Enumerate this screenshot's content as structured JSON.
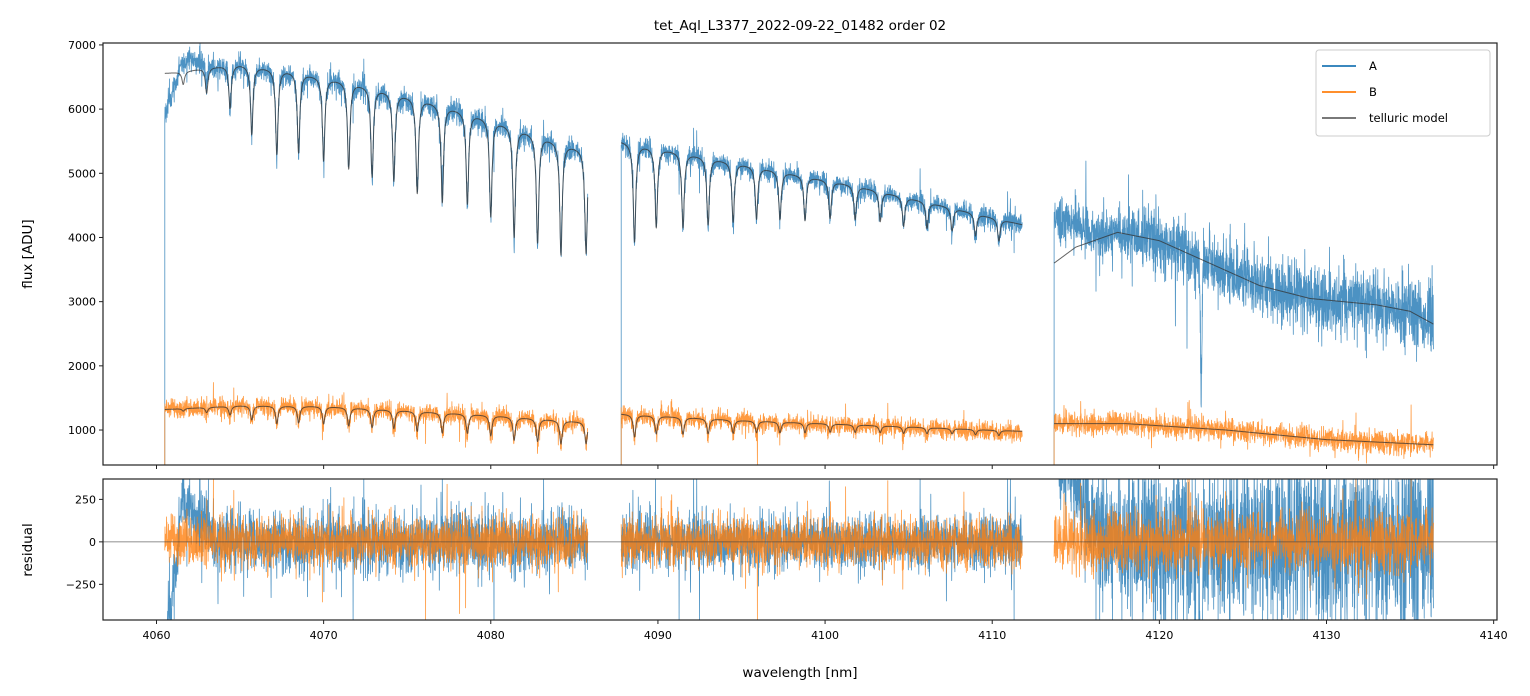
{
  "chart_data": {
    "type": "line",
    "title": "tet_Aql_L3377_2022-09-22_01482  order 02",
    "xlabel": "wavelength [nm]",
    "xlim": [
      4056.8,
      4140.2
    ],
    "xticks": [
      4060,
      4070,
      4080,
      4090,
      4100,
      4110,
      4120,
      4130,
      4140
    ],
    "legend": {
      "placement": "top-right",
      "entries": [
        "A",
        "B",
        "telluric model"
      ]
    },
    "colors": {
      "A": "#1f77b4",
      "B": "#ff7f0e",
      "model": "#333333"
    },
    "panels": [
      {
        "name": "flux",
        "ylabel": "flux [ADU]",
        "ylim": [
          455,
          7030
        ],
        "yticks": [
          1000,
          2000,
          3000,
          4000,
          5000,
          6000,
          7000
        ]
      },
      {
        "name": "residual",
        "ylabel": "residual",
        "ylim": [
          -460,
          370
        ],
        "yticks": [
          -250,
          0,
          250
        ]
      }
    ],
    "segments": [
      {
        "range": [
          4060.5,
          4085.8
        ],
        "model_A": [
          [
            4060.5,
            6560
          ],
          [
            4061.5,
            6580
          ],
          [
            4063,
            6650
          ],
          [
            4065,
            6700
          ],
          [
            4068,
            6600
          ],
          [
            4072,
            6400
          ],
          [
            4076,
            6150
          ],
          [
            4080,
            5850
          ],
          [
            4084,
            5500
          ],
          [
            4085.8,
            5350
          ]
        ],
        "model_B": [
          [
            4060.5,
            1320
          ],
          [
            4065,
            1380
          ],
          [
            4070,
            1370
          ],
          [
            4075,
            1300
          ],
          [
            4080,
            1230
          ],
          [
            4085.8,
            1120
          ]
        ],
        "lines": [
          [
            4061.6,
            0.03
          ],
          [
            4063.0,
            0.06
          ],
          [
            4064.4,
            0.1
          ],
          [
            4065.7,
            0.16
          ],
          [
            4067.2,
            0.2
          ],
          [
            4068.5,
            0.19
          ],
          [
            4070.0,
            0.2
          ],
          [
            4071.5,
            0.21
          ],
          [
            4072.9,
            0.22
          ],
          [
            4074.2,
            0.22
          ],
          [
            4075.6,
            0.24
          ],
          [
            4077.1,
            0.25
          ],
          [
            4078.6,
            0.24
          ],
          [
            4080.0,
            0.26
          ],
          [
            4081.4,
            0.3
          ],
          [
            4082.8,
            0.3
          ],
          [
            4084.2,
            0.32
          ],
          [
            4085.7,
            0.3
          ]
        ],
        "noise_A": 90,
        "noise_B": 75,
        "residual_A_offset": [
          [
            4060.5,
            -600
          ],
          [
            4061.2,
            -150
          ],
          [
            4061.5,
            250
          ],
          [
            4062.5,
            150
          ],
          [
            4063.5,
            0
          ]
        ]
      },
      {
        "range": [
          4087.8,
          4111.8
        ],
        "model_A": [
          [
            4087.8,
            5500
          ],
          [
            4092,
            5300
          ],
          [
            4097,
            5050
          ],
          [
            4102,
            4800
          ],
          [
            4107,
            4500
          ],
          [
            4111.8,
            4200
          ]
        ],
        "model_B": [
          [
            4087.8,
            1250
          ],
          [
            4095,
            1150
          ],
          [
            4102,
            1080
          ],
          [
            4111.8,
            980
          ]
        ],
        "lines": [
          [
            4088.6,
            0.28
          ],
          [
            4089.9,
            0.23
          ],
          [
            4091.5,
            0.22
          ],
          [
            4093.0,
            0.2
          ],
          [
            4094.5,
            0.18
          ],
          [
            4095.9,
            0.16
          ],
          [
            4097.3,
            0.15
          ],
          [
            4098.8,
            0.14
          ],
          [
            4100.3,
            0.12
          ],
          [
            4101.8,
            0.11
          ],
          [
            4103.3,
            0.1
          ],
          [
            4104.7,
            0.1
          ],
          [
            4106.1,
            0.09
          ],
          [
            4107.6,
            0.08
          ],
          [
            4109.0,
            0.08
          ],
          [
            4110.4,
            0.08
          ]
        ],
        "noise_A": 80,
        "noise_B": 70,
        "residual_A_offset": []
      },
      {
        "range": [
          4113.7,
          4136.4
        ],
        "model_A": [
          [
            4113.7,
            3600
          ],
          [
            4115,
            3850
          ],
          [
            4117.5,
            4080
          ],
          [
            4120,
            3950
          ],
          [
            4123,
            3600
          ],
          [
            4126,
            3250
          ],
          [
            4129,
            3050
          ],
          [
            4133,
            2950
          ],
          [
            4135,
            2850
          ],
          [
            4136.4,
            2650
          ]
        ],
        "model_B": [
          [
            4113.7,
            1100
          ],
          [
            4118,
            1100
          ],
          [
            4124,
            1000
          ],
          [
            4130,
            850
          ],
          [
            4136.4,
            770
          ]
        ],
        "lines": [],
        "extra_lines_A": [
          [
            4122.5,
            0.62
          ]
        ],
        "noise_A": 180,
        "noise_B": 85,
        "residual_A_offset": [
          [
            4113.7,
            700
          ],
          [
            4115,
            350
          ],
          [
            4116.5,
            0
          ]
        ]
      }
    ]
  }
}
